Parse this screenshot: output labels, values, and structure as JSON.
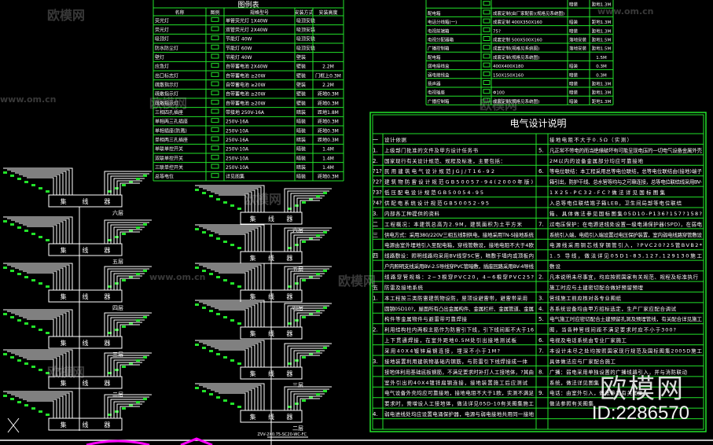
{
  "colors": {
    "grid": "#22e22a",
    "line": "#ffffff",
    "accent": "#ff00ff",
    "background": "#000000"
  },
  "legend_table": {
    "title": "图例表",
    "headers": [
      "名称",
      "图例",
      "规格型号",
      "安装方式",
      "安装高度"
    ],
    "rows": [
      [
        "荧光灯",
        "single-tube-icon",
        "单管荧光灯 1X40W",
        "吸顶安装",
        ""
      ],
      [
        "荧光灯",
        "double-tube-icon",
        "双管荧光灯 2X40W",
        "吸顶安装",
        ""
      ],
      [
        "吸顶灯",
        "ceiling-lamp-icon",
        "节能灯 40W",
        "吸顶安装",
        ""
      ],
      [
        "防水防尘灯",
        "waterproof-lamp-icon",
        "节能灯 60W",
        "吸顶安装",
        ""
      ],
      [
        "壁灯",
        "wall-lamp-icon",
        "节能灯 40W",
        "壁装",
        ""
      ],
      [
        "应急灯",
        "emergency-lamp-icon",
        "自带蓄电池 2X40W",
        "壁装",
        "2.2M"
      ],
      [
        "出口标志灯",
        "exit-sign-icon",
        "自带蓄电池 ≥20W",
        "壁装",
        "门框上0.3M"
      ],
      [
        "疏散指示灯",
        "evacuation-sign-icon",
        "自带蓄电池 ≥20W",
        "壁装",
        "2.2M"
      ],
      [
        "疏散指示灯",
        "evacuation-sign-icon",
        "自带蓄电池 ≥20W",
        "壁装",
        "距地0.3M"
      ],
      [
        "疏散指示灯",
        "evacuation-sign-icon",
        "自带蓄电池 ≥20W",
        "壁装",
        "距地0.3M"
      ],
      [
        "三相四孔插座",
        "socket-icon",
        "带接地 250V-16A",
        "暗装",
        "距地1.8M"
      ],
      [
        "单相两三孔插座",
        "socket-icon",
        "250V-16A",
        "暗装",
        "距地0.3M"
      ],
      [
        "单相插座(防溅)",
        "socket-icon",
        "250V-10A",
        "暗装",
        "距地0.3M"
      ],
      [
        "单相两三孔插座",
        "socket-icon",
        "250V-16A",
        "暗装",
        "距地0.3M"
      ],
      [
        "单联单控开关",
        "switch-icon",
        "250V-10A",
        "暗装",
        "1.4M"
      ],
      [
        "双联单控开关",
        "switch-icon",
        "250V-10A",
        "暗装",
        "1.4M"
      ],
      [
        "三联单控开关",
        "switch-icon",
        "250V-10A",
        "暗装",
        "1.4M"
      ],
      [
        "总等电位",
        "ground-icon",
        "详见图集",
        "暗装",
        "距地0.3M"
      ]
    ]
  },
  "equipment_table": {
    "rows": [
      [
        "",
        "box-icon",
        "",
        "暗装",
        "距地1.3M"
      ],
      [
        "配电箱",
        "panel-icon",
        "成套定制(由厂家配套)(规格见系统图)",
        "",
        ""
      ],
      [
        "电话分线箱(一)",
        "box-icon",
        "成套定制 400X350X160",
        "暗装",
        "距地1.3M"
      ],
      [
        "电视前端箱",
        "tv-icon",
        "75?",
        "暗装",
        "距地1.3M"
      ],
      [
        "电视分配器箱",
        "box-icon",
        "成套定制 500X500X160",
        "落地安装",
        "距地1.5M"
      ],
      [
        "广播控制箱",
        "panel-icon",
        "成套定制(规格见系统图)",
        "落地安装",
        "距地1.5M"
      ],
      [
        "配电箱",
        "panel-icon",
        "成套定制(规格见系统图)",
        "",
        "1.5M"
      ],
      [
        "弱电接线盒",
        "junction-icon",
        "400X400X180",
        "暗装",
        "0.3M"
      ],
      [
        "弱电接线盒",
        "junction-icon",
        "150X150X160",
        "暗装",
        "0.3M"
      ],
      [
        "扬声器",
        "speaker-icon",
        "",
        "暗装",
        "距地1.3M"
      ],
      [
        "电视插座",
        "antenna-icon",
        "Φ100",
        "暗装",
        "距地1.3M"
      ],
      [
        "广播控制箱",
        "panel-icon",
        "成套定制(规格见系统图)",
        "暗装",
        "距地1.3M"
      ]
    ]
  },
  "design_notes": {
    "title": "电气设计说明",
    "rows": [
      [
        "一",
        "设计依据",
        "",
        "接地电阻不大于0.5Ω（实测）"
      ],
      [
        "1.",
        "上级部门批准的文件及甲方设计任务书",
        "5.",
        "凡正常不带电的而当绝缘破坏有可能呈现电压的一切电气设备金属外壳"
      ],
      [
        "2.",
        "国家现行有关设计规范、规程及标准，主要包括：",
        "",
        "2M以内的设备金属部分均应可靠接地"
      ],
      [
        "?1?",
        "民用建筑电气设计规范JGJ/T16-92",
        "6.",
        "等电位联结：本工程采用总等电位联结，总等电位联结由(接地)端子"
      ],
      [
        "?2?",
        "建筑物防雷设计规范GB50057-94(2000年版)",
        "",
        "箱引出，防护干线、总水管等均与之可靠连接，总等电位联结线采用BV-"
      ],
      [
        "?3?",
        "低压配电设计规范GB50054-95",
        "",
        "1X25-PC32-FC?做法详见国标图集"
      ],
      [
        "?4?",
        "供配电系统设计规范GB50052-95",
        "",
        "入总等电位联结端子箱LEB，卫生间局部等电位联结"
      ],
      [
        "3.",
        "内部各工种提供的资料",
        "",
        "箱、具体做法参见国标图集05D10-P136?157?158?"
      ],
      [
        "二",
        "工程概况：本建筑总高为2.9M，建筑面积为土平方米",
        "7.",
        "过电压保护：在电源进线处设置一级电涌保护器(SPD)，在弱电"
      ],
      [
        "三",
        "供电方式：采用380/220V三相五线制供电，接地采用TN-S接地系统",
        "",
        "系统引入端，电缆引入端设置过电压保护装置，室内弱电线路穿管敷设"
      ],
      [
        "",
        "电源由室外埋地引入至配电箱，穿线管敷设，接地电阻不大于4欧",
        "",
        "电源线采用铜芯线穿钢管引入，?PVC20?25管BVB2*"
      ],
      [
        "四",
        "线路敷设：照明线路均采用BV线穿SC管，暗敷于墙内或顶板内",
        "",
        "1.5 导线，做法详见05D1-83,127,129130施工"
      ],
      [
        "",
        "户内照明支线采用BV-2.5导线穿PVC管暗敷，插座回路采用BV-4导线",
        "",
        "敷设"
      ],
      [
        "",
        "线路穿管规格：2~3根穿PVC20，4~6根穿PVC25?",
        "2.",
        "凡本说明未尽事宜，均应按照国家有关规范、规程及标准执行"
      ],
      [
        "五",
        "防雷及接地系统",
        "",
        "施工时应与土建密切配合做好预留预埋"
      ],
      [
        "1.",
        "本工程按三类防雷建筑物设防，屋顶设避雷带，避雷带采用",
        "3.",
        "管线施工前应核对各专业图纸"
      ],
      [
        "",
        "圆钢05D10?，屋面所有凸出金属构件、金属栏杆、金属管道、金属",
        "4.",
        "各系统设备均由甲方招标选定，生产厂家应配合调试"
      ],
      [
        "",
        "构件等金属物件与避雷带可靠焊接",
        "5.",
        "电气施工时应密切配合土建预留孔洞及预埋管线，有关配合详见施工"
      ],
      [
        "2.",
        "利用结构柱内两根主筋作为防雷引下线，引下线间距不大于16",
        "",
        "图，当各种管线间距不满足要求时应不小于300?"
      ],
      [
        "",
        "上下贯通焊接，在室外距地0.5M处引出接地测试板",
        "6.",
        "电视及电话系统由专业厂家施工"
      ],
      [
        "",
        "采用40X4镀锌扁钢连接，埋深不小于1M?",
        "7.",
        "本设计未尽之处均按照国家现行规范及国标图集2005D施工"
      ],
      [
        "3.",
        "接地装置利用建筑物基础内钢筋，与防雷引下线焊接成一体",
        "",
        "具体做法应与厂家配合施工"
      ],
      [
        "",
        "接地体利用基础底板钢筋，不满足要求时补打人工接地体，?其由",
        "8.",
        "广播：弱电采用单独设置的广播线路引入，并与消防联动"
      ],
      [
        "",
        "室外引出的40X4镀锌扁钢连接，接地装置施工后应测试",
        "",
        "系统，做法详见图集"
      ],
      [
        "",
        "电气设备外壳均应可靠接地，接地电阻不大于1欧，实测不满足",
        "9.",
        "电话：由室外引入，做法参见有关图集"
      ],
      [
        "",
        "要求时，需增设人工接地体，做法详见05D-10有关图集施工",
        "",
        "做法参照有关图集"
      ],
      [
        "4.",
        "弱电进线处均应设置电涌保护器，电源与弱电接地共用同一接地",
        "",
        ""
      ],
      [
        "",
        "",
        "",
        ""
      ]
    ]
  },
  "riser": {
    "hub_label": [
      "集",
      "线",
      "器"
    ],
    "left_floors": [
      "六层",
      "五层",
      "四层",
      "三层",
      "二层",
      ""
    ],
    "right_floors": [
      "六层",
      "五层",
      "四层",
      "",
      "三层",
      "二层"
    ],
    "caption": "ZVV-2X0.75-SC20-WC-FC"
  },
  "watermark": {
    "site": "www.om.cn",
    "brand": "欧模网",
    "id": "ID:2286570"
  }
}
